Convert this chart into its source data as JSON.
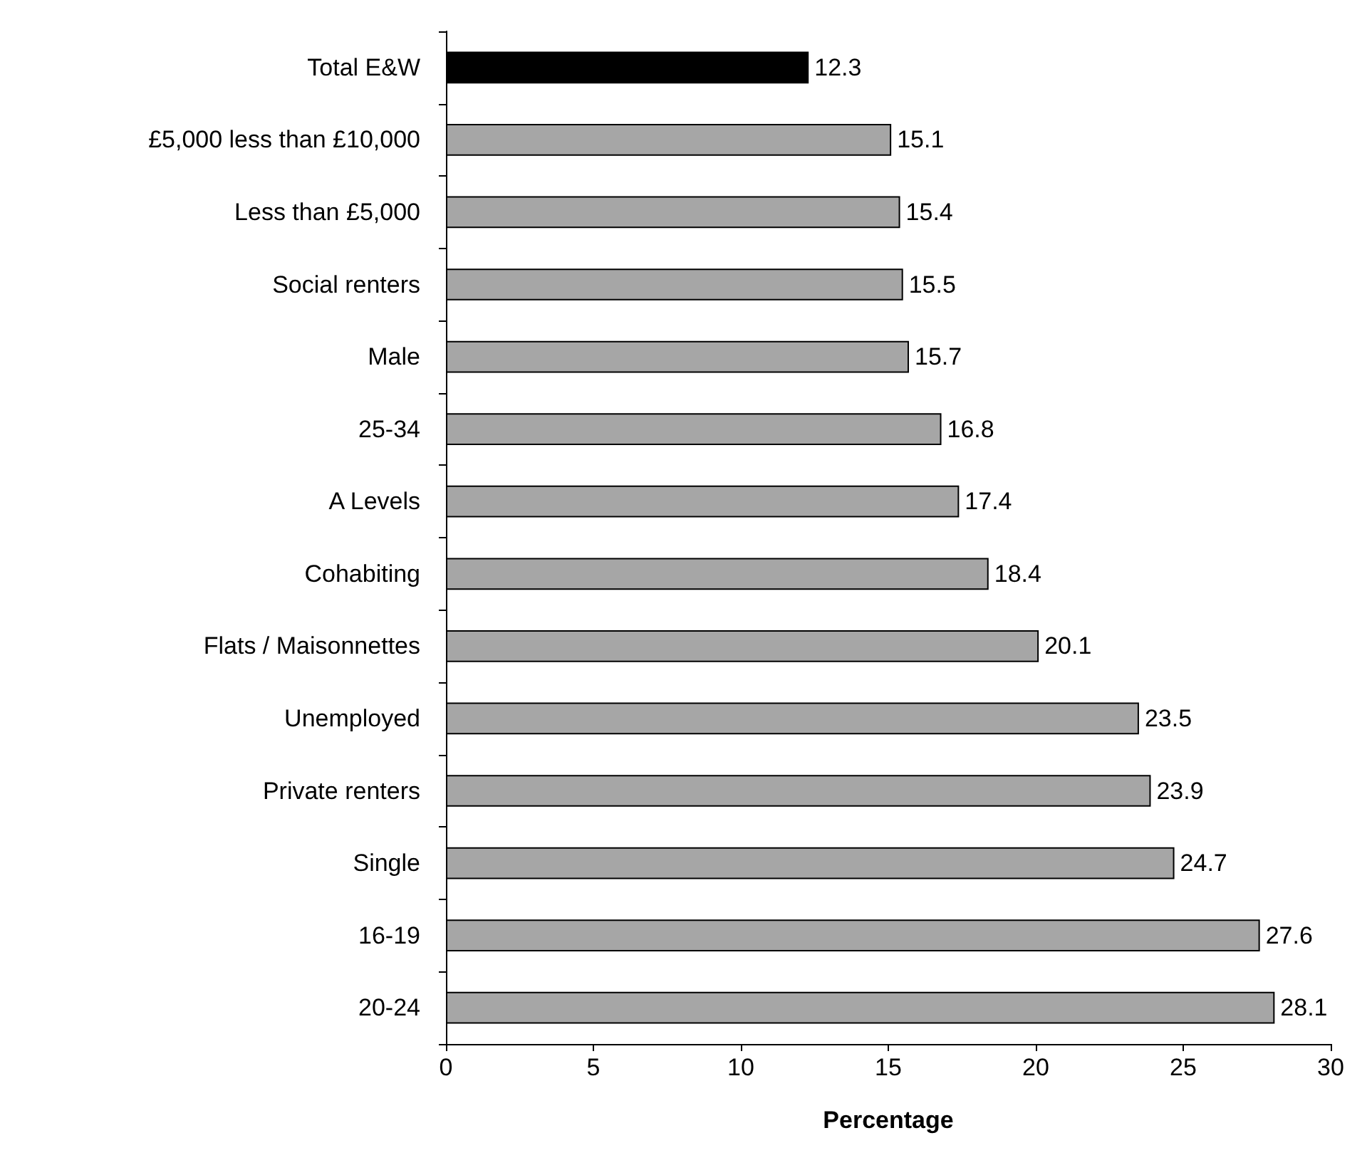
{
  "chart_data": {
    "type": "bar",
    "orientation": "horizontal",
    "xlabel": "Percentage",
    "categories": [
      "Total E&W",
      "£5,000 less than £10,000",
      "Less than £5,000",
      "Social renters",
      "Male",
      "25-34",
      "A Levels",
      "Cohabiting",
      "Flats / Maisonnettes",
      "Unemployed",
      "Private renters",
      "Single",
      "16-19",
      "20-24"
    ],
    "values": [
      12.3,
      15.1,
      15.4,
      15.5,
      15.7,
      16.8,
      17.4,
      18.4,
      20.1,
      23.5,
      23.9,
      24.7,
      27.6,
      28.1
    ],
    "colors": [
      "#000000",
      "#a6a6a6",
      "#a6a6a6",
      "#a6a6a6",
      "#a6a6a6",
      "#a6a6a6",
      "#a6a6a6",
      "#a6a6a6",
      "#a6a6a6",
      "#a6a6a6",
      "#a6a6a6",
      "#a6a6a6",
      "#a6a6a6",
      "#a6a6a6"
    ],
    "xlim": [
      0,
      30
    ],
    "xticks": [
      0,
      5,
      10,
      15,
      20,
      25,
      30
    ],
    "data_labels": true
  }
}
